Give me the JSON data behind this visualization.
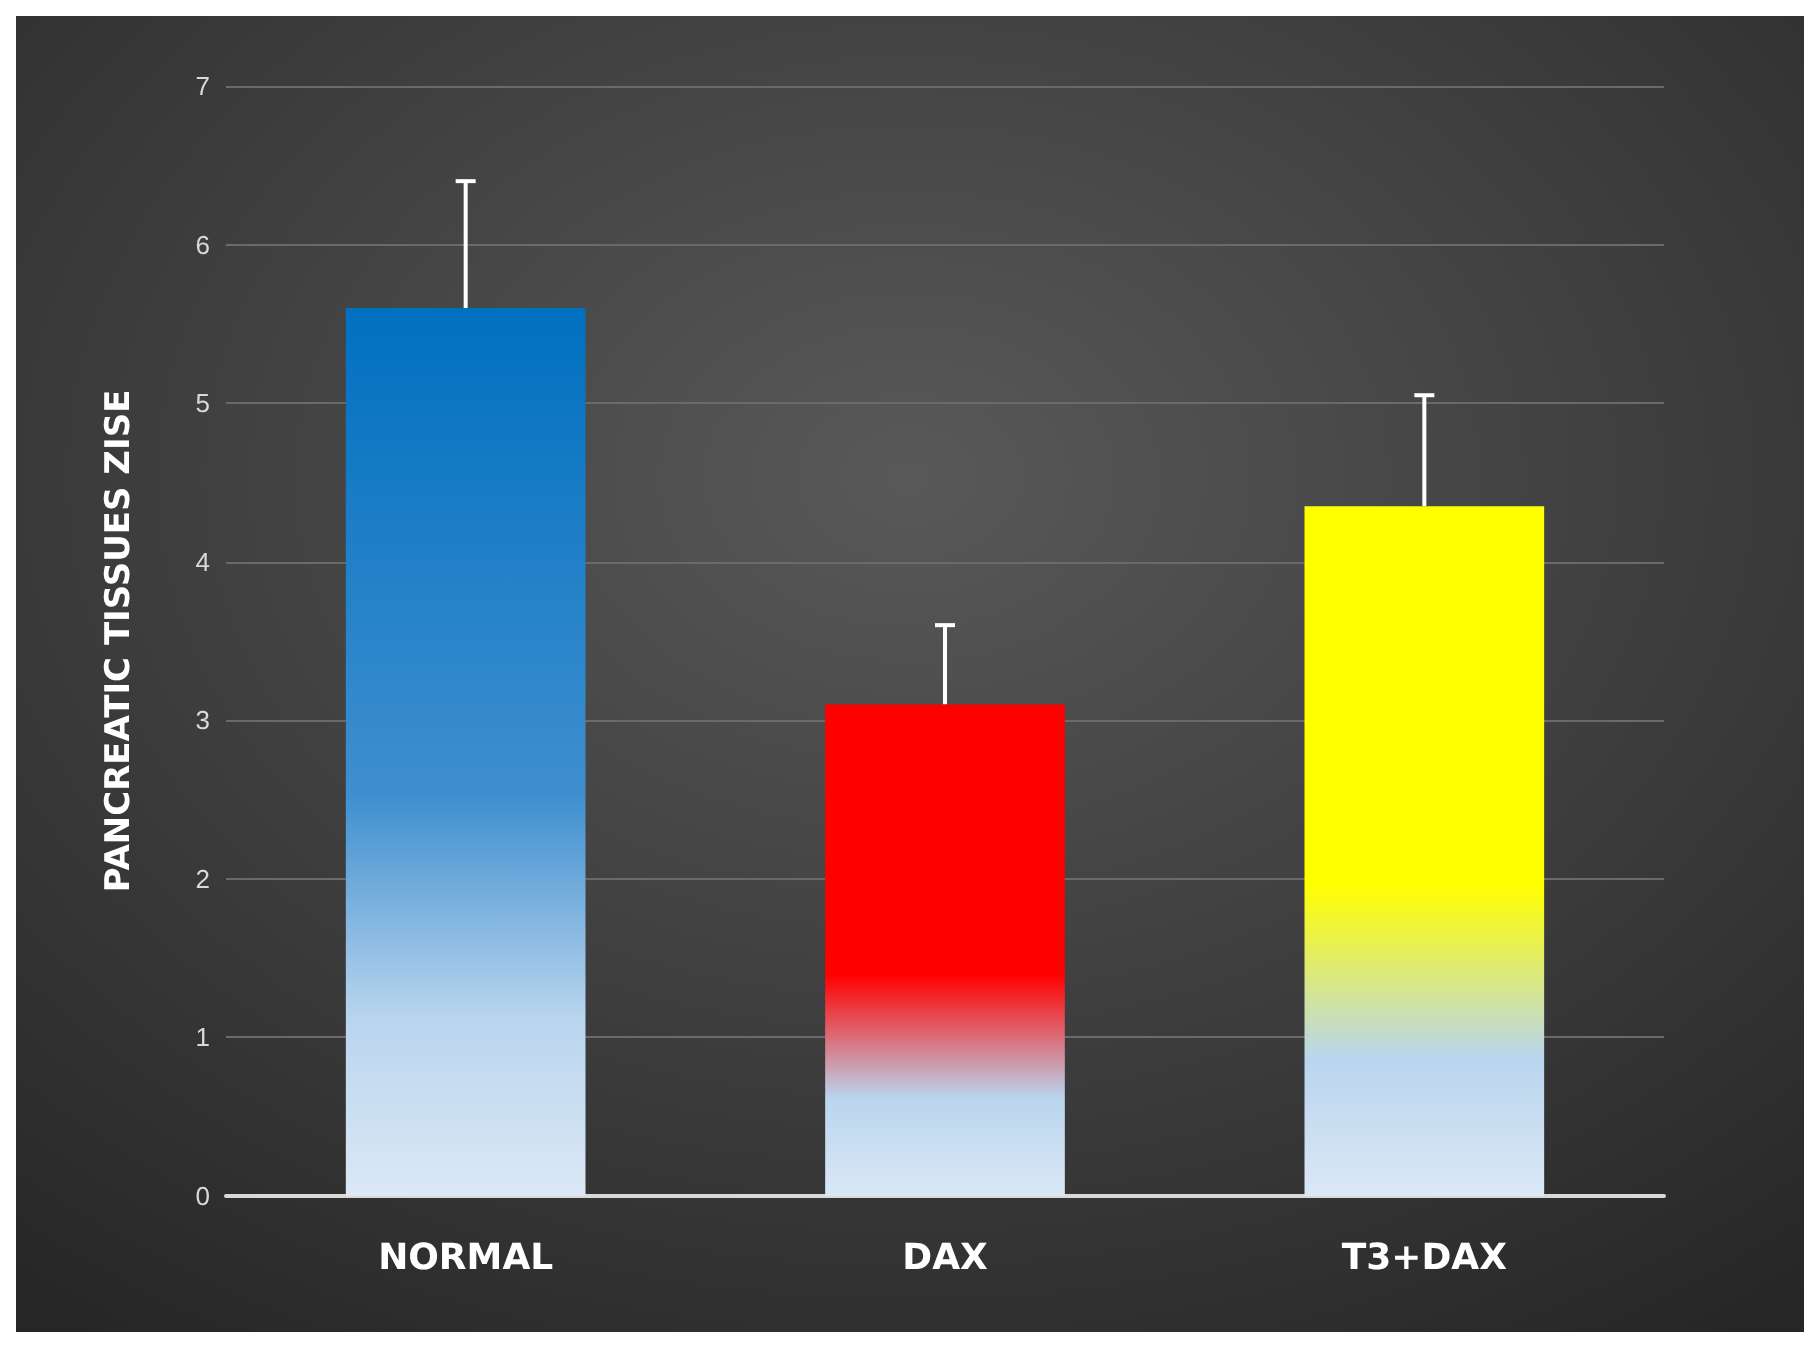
{
  "chart_data": {
    "type": "bar",
    "ylabel": "PANCREATIC TISSUES ZISE",
    "categories": [
      "NORMAL",
      "DAX",
      "T3+DAX"
    ],
    "values": [
      5.6,
      3.1,
      4.35
    ],
    "colors": [
      "#0070c0",
      "#ff0000",
      "#ffff00"
    ],
    "errors": [
      [
        5.6,
        6.4
      ],
      [
        3.1,
        3.6
      ],
      [
        4.35,
        5.05
      ]
    ],
    "ylim": [
      0,
      7
    ],
    "yticks": [
      0,
      1,
      2,
      3,
      4,
      5,
      6,
      7
    ],
    "grid": "y"
  }
}
